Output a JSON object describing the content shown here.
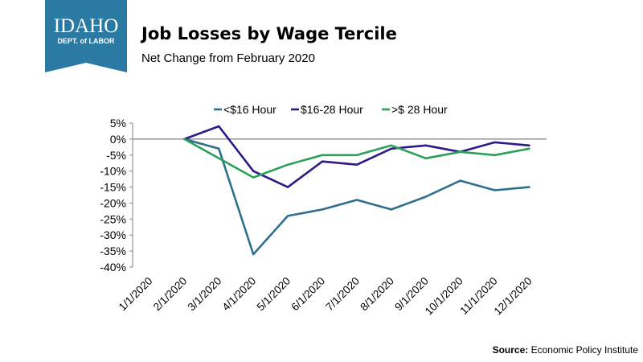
{
  "header": {
    "logo_line1": "IDAHO",
    "logo_line2": "DEPT. of LABOR",
    "title": "Job Losses by Wage Tercile",
    "subtitle": "Net Change from February 2020"
  },
  "footer": {
    "source_label": "Source:",
    "source_text": "Economic Policy Institute"
  },
  "colors": {
    "logo_bg": "#2b7aa3",
    "zero_line": "#808080"
  },
  "chart_data": {
    "type": "line",
    "x": [
      "1/1/2020",
      "2/1/2020",
      "3/1/2020",
      "4/1/2020",
      "5/1/2020",
      "6/1/2020",
      "7/1/2020",
      "8/1/2020",
      "9/1/2020",
      "10/1/2020",
      "11/1/2020",
      "12/1/2020"
    ],
    "series": [
      {
        "name": "<$16 Hour",
        "color": "#2e6f8e",
        "values": [
          null,
          0,
          -3,
          -36,
          -24,
          -22,
          -19,
          -22,
          -18,
          -13,
          -16,
          -15
        ]
      },
      {
        "name": "$16-28 Hour",
        "color": "#2e1a87",
        "values": [
          null,
          0,
          4,
          -10,
          -15,
          -7,
          -8,
          -3,
          -2,
          -4,
          -1,
          -2
        ]
      },
      {
        "name": ">$ 28 Hour",
        "color": "#2ca05a",
        "values": [
          null,
          0,
          -6,
          -12,
          -8,
          -5,
          -5,
          -2,
          -6,
          -4,
          -5,
          -3
        ]
      }
    ],
    "y_ticks": [
      5,
      0,
      -5,
      -10,
      -15,
      -20,
      -25,
      -30,
      -35,
      -40
    ],
    "y_tick_suffix": "%",
    "ylim": [
      -40,
      5
    ],
    "grid": false,
    "legend_position": "top"
  }
}
